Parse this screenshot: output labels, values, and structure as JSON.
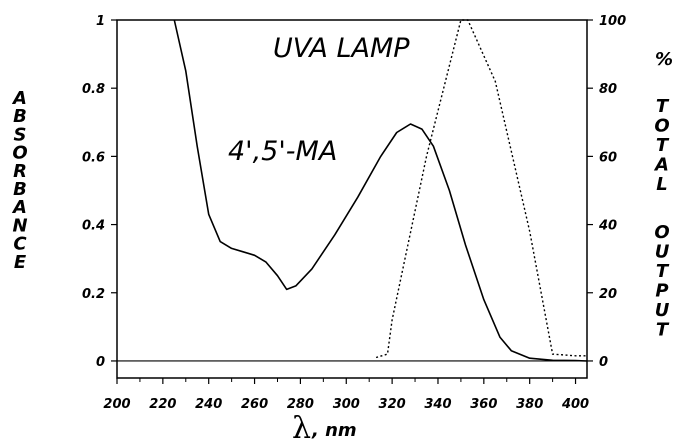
{
  "chart_data": {
    "type": "line",
    "xlabel_symbol": "λ",
    "xlabel": ", nm",
    "ylabel_left": "ABSORBANCE",
    "ylabel_right_1": "%",
    "ylabel_right_2": "TOTAL",
    "ylabel_right_3": "OUTPUT",
    "xlim": [
      200,
      405
    ],
    "ylim_left": [
      -0.05,
      1
    ],
    "ylim_right": [
      -5,
      100
    ],
    "x_ticks": [
      "200",
      "220",
      "240",
      "260",
      "280",
      "300",
      "320",
      "340",
      "360",
      "380",
      "400"
    ],
    "y_ticks_left": [
      "1",
      "0.8",
      "0.6",
      "0.4",
      "0.2",
      "0"
    ],
    "y_ticks_right": [
      "100",
      "80",
      "60",
      "40",
      "20",
      "0"
    ],
    "annotations": [
      "UVA LAMP",
      "4',5'-MA"
    ],
    "series": [
      {
        "name": "4',5'-MA",
        "axis": "left",
        "style": "solid",
        "x": [
          225,
          230,
          235,
          240,
          245,
          250,
          255,
          260,
          265,
          270,
          274,
          278,
          285,
          295,
          305,
          315,
          322,
          328,
          333,
          338,
          345,
          352,
          360,
          367,
          372,
          380,
          390,
          400,
          405
        ],
        "y": [
          1.0,
          0.85,
          0.63,
          0.43,
          0.35,
          0.33,
          0.32,
          0.31,
          0.29,
          0.25,
          0.21,
          0.22,
          0.27,
          0.37,
          0.48,
          0.6,
          0.67,
          0.695,
          0.68,
          0.63,
          0.5,
          0.34,
          0.18,
          0.07,
          0.03,
          0.008,
          0.002,
          0.001,
          0.0
        ]
      },
      {
        "name": "UVA LAMP",
        "axis": "right",
        "style": "dotted",
        "x": [
          313,
          318,
          320,
          335,
          350,
          353,
          365,
          380,
          390,
          400,
          405
        ],
        "y": [
          1,
          2,
          12,
          60,
          100,
          100,
          82,
          38,
          2,
          1.5,
          1.5
        ]
      }
    ],
    "baseline_y": 0,
    "grid": false,
    "legend": "none"
  }
}
